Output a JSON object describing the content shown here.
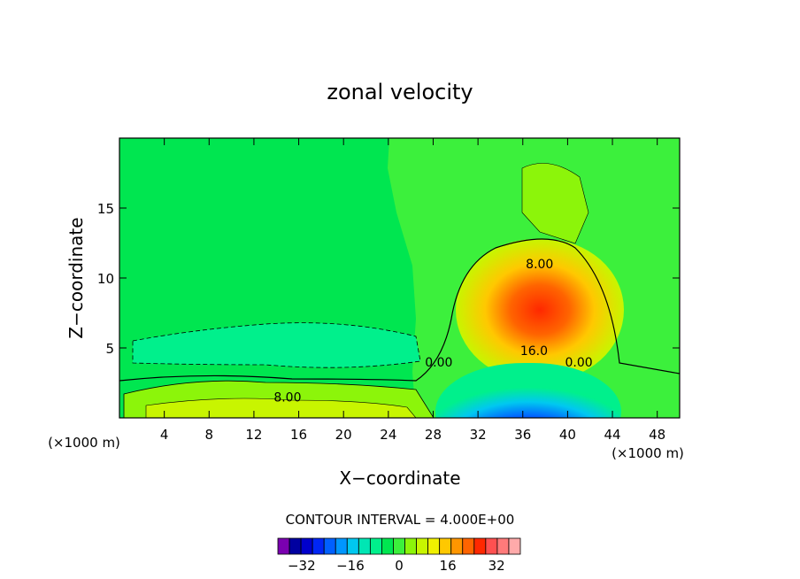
{
  "chart_data": {
    "type": "contour",
    "title": "zonal velocity",
    "xlabel": "X−coordinate",
    "ylabel": "Z−coordinate",
    "x_unit_label": "(×1000 m)",
    "xlim": [
      0,
      50
    ],
    "ylim": [
      0,
      20
    ],
    "x_ticks": [
      4,
      8,
      12,
      16,
      20,
      24,
      28,
      32,
      36,
      40,
      44,
      48
    ],
    "y_ticks": [
      5,
      10,
      15
    ],
    "contour_interval_label": "CONTOUR INTERVAL = 4.000E+00",
    "contour_labels": [
      {
        "text": "8.00",
        "x": 37.5,
        "y": 11.0
      },
      {
        "text": "16.0",
        "x": 37.0,
        "y": 4.8
      },
      {
        "text": "0.00",
        "x": 28.5,
        "y": 4.0
      },
      {
        "text": "0.00",
        "x": 41.0,
        "y": 4.0
      },
      {
        "text": "8.00",
        "x": 15.0,
        "y": 1.5
      }
    ],
    "features": [
      {
        "kind": "jet_max",
        "x": 37,
        "y": 7,
        "value": 30
      },
      {
        "kind": "jet_min",
        "x": 36.5,
        "y": 0.3,
        "value": -36
      }
    ],
    "colorbar": {
      "levels": [
        -36,
        -32,
        -28,
        -24,
        -20,
        -16,
        -12,
        -8,
        -4,
        0,
        4,
        8,
        12,
        16,
        20,
        24,
        28,
        32,
        36
      ],
      "colors": [
        "#7a00b0",
        "#0000a0",
        "#0000cc",
        "#0026f5",
        "#0060ff",
        "#0096ff",
        "#00c8f0",
        "#00e6b4",
        "#00f08c",
        "#00e650",
        "#3cf03c",
        "#8cf50a",
        "#c8f500",
        "#f0f000",
        "#ffc800",
        "#ff9600",
        "#ff6400",
        "#ff2800",
        "#ff5050",
        "#ff7a7a",
        "#ffaaaa"
      ],
      "tick_values": [
        -32,
        -16,
        0,
        16,
        32
      ],
      "tick_labels": [
        "−32",
        "−16",
        "0",
        "16",
        "32"
      ]
    }
  }
}
